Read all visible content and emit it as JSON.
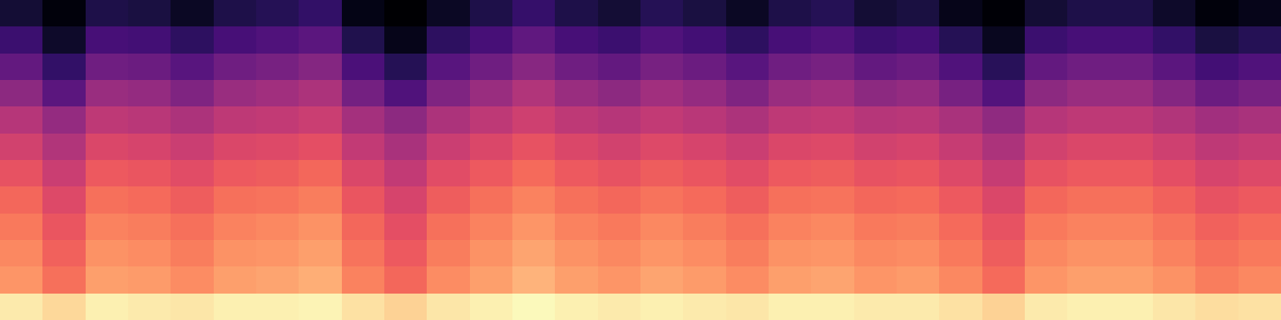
{
  "chart_data": {
    "type": "heatmap",
    "color": "magma",
    "tick_labels": false,
    "zlim": [
      0,
      100
    ],
    "cells": [
      [
        96,
        92,
        97,
        96,
        95,
        97,
        97,
        98,
        94,
        91,
        95,
        97,
        99,
        97,
        96,
        97,
        96,
        95,
        97,
        97,
        96,
        96,
        94,
        91,
        96,
        97,
        97,
        95,
        93,
        94
      ],
      [
        78,
        70,
        80,
        79,
        76,
        80,
        81,
        83,
        74,
        68,
        76,
        80,
        84,
        80,
        78,
        81,
        79,
        76,
        80,
        81,
        78,
        79,
        75,
        69,
        78,
        80,
        80,
        77,
        73,
        75
      ],
      [
        75,
        67,
        77,
        76,
        73,
        77,
        78,
        80,
        71,
        65,
        73,
        77,
        81,
        77,
        75,
        78,
        76,
        73,
        77,
        78,
        75,
        76,
        72,
        66,
        75,
        77,
        77,
        74,
        70,
        72
      ],
      [
        72,
        64,
        74,
        73,
        70,
        74,
        75,
        77,
        68,
        62,
        70,
        74,
        78,
        74,
        72,
        75,
        73,
        70,
        74,
        75,
        72,
        73,
        69,
        63,
        72,
        74,
        74,
        71,
        67,
        69
      ],
      [
        68,
        60,
        70,
        69,
        66,
        70,
        71,
        73,
        64,
        58,
        66,
        70,
        74,
        70,
        68,
        71,
        69,
        66,
        70,
        71,
        68,
        69,
        65,
        59,
        68,
        70,
        70,
        67,
        63,
        65
      ],
      [
        63,
        55,
        65,
        64,
        61,
        65,
        66,
        68,
        59,
        53,
        61,
        65,
        69,
        65,
        63,
        66,
        64,
        61,
        65,
        66,
        63,
        64,
        60,
        54,
        63,
        65,
        65,
        62,
        58,
        60
      ],
      [
        57,
        49,
        59,
        58,
        55,
        59,
        60,
        62,
        53,
        47,
        55,
        59,
        63,
        59,
        57,
        60,
        58,
        55,
        59,
        60,
        57,
        58,
        54,
        48,
        57,
        59,
        59,
        56,
        52,
        54
      ],
      [
        50,
        42,
        52,
        51,
        48,
        52,
        53,
        55,
        46,
        40,
        48,
        52,
        56,
        52,
        50,
        53,
        51,
        48,
        52,
        53,
        50,
        51,
        47,
        41,
        50,
        52,
        52,
        49,
        45,
        47
      ],
      [
        40,
        28,
        43,
        42,
        37,
        43,
        45,
        48,
        34,
        25,
        37,
        43,
        49,
        43,
        40,
        45,
        42,
        37,
        43,
        45,
        40,
        42,
        35,
        26,
        40,
        43,
        43,
        38,
        32,
        35
      ],
      [
        30,
        18,
        33,
        32,
        27,
        33,
        35,
        38,
        24,
        15,
        27,
        33,
        39,
        33,
        30,
        35,
        32,
        27,
        33,
        35,
        30,
        32,
        25,
        16,
        30,
        33,
        33,
        28,
        22,
        25
      ],
      [
        20,
        8,
        23,
        22,
        17,
        23,
        25,
        28,
        14,
        5,
        17,
        23,
        29,
        23,
        20,
        25,
        22,
        17,
        23,
        25,
        20,
        22,
        15,
        6,
        20,
        23,
        23,
        18,
        12,
        15
      ],
      [
        10,
        2,
        13,
        12,
        7,
        13,
        15,
        18,
        4,
        0,
        7,
        13,
        19,
        13,
        10,
        15,
        12,
        7,
        13,
        15,
        10,
        12,
        5,
        1,
        10,
        13,
        13,
        8,
        2,
        5
      ]
    ]
  }
}
